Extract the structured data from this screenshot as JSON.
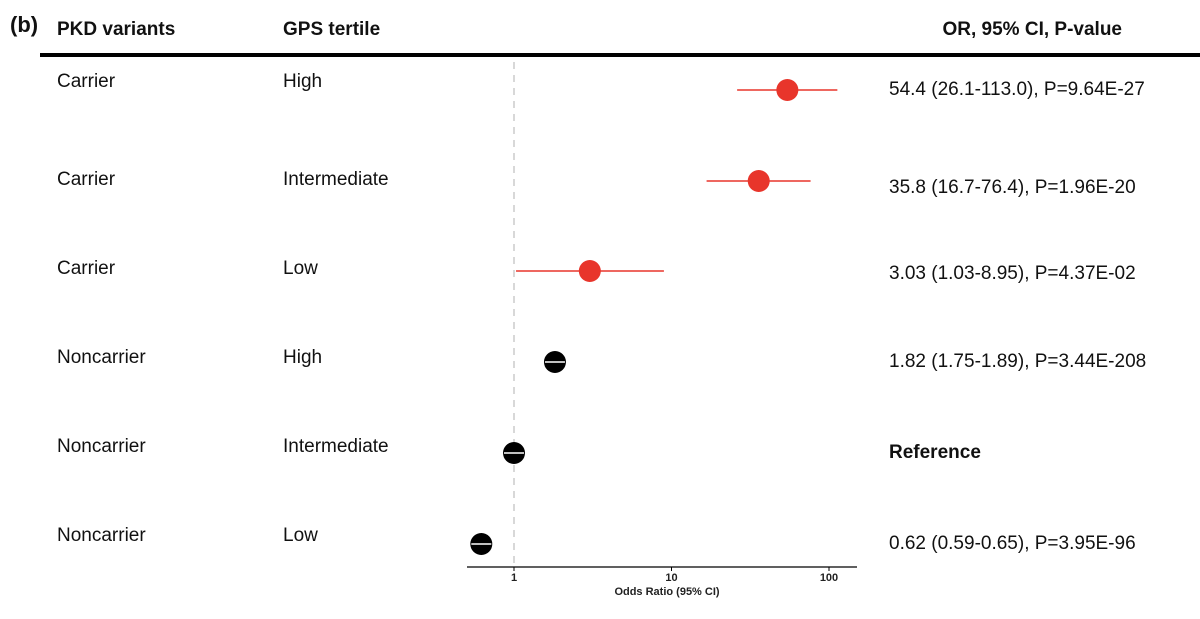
{
  "panel_label": "(b)",
  "headers": {
    "variant": "PKD variants",
    "tertile": "GPS tertile",
    "stats": "OR, 95% CI, P-value"
  },
  "rows": [
    {
      "variant": "Carrier",
      "tertile": "High",
      "stats": "54.4 (26.1-113.0), P=9.64E-27"
    },
    {
      "variant": "Carrier",
      "tertile": "Intermediate",
      "stats": "35.8 (16.7-76.4), P=1.96E-20"
    },
    {
      "variant": "Carrier",
      "tertile": "Low",
      "stats": "3.03 (1.03-8.95), P=4.37E-02"
    },
    {
      "variant": "Noncarrier",
      "tertile": "High",
      "stats": "1.82 (1.75-1.89), P=3.44E-208"
    },
    {
      "variant": "Noncarrier",
      "tertile": "Intermediate",
      "stats": "Reference"
    },
    {
      "variant": "Noncarrier",
      "tertile": "Low",
      "stats": "0.62 (0.59-0.65), P=3.95E-96"
    }
  ],
  "colors": {
    "carrier": "#e8352b",
    "noncarrier": "#000000",
    "reference_line": "#cccccc"
  },
  "chart_data": {
    "type": "scatter",
    "title": "",
    "xlabel": "Odds Ratio (95% CI)",
    "ylabel": "",
    "x_scale": "log10",
    "xlim": [
      0.55,
      170
    ],
    "x_ticks": [
      1,
      10,
      100
    ],
    "x_tick_labels": [
      "1",
      "10",
      "100"
    ],
    "reference_value": 1,
    "series": [
      {
        "name": "Carrier",
        "points": [
          {
            "label": "Carrier High",
            "or": 54.4,
            "lo": 26.1,
            "hi": 113.0
          },
          {
            "label": "Carrier Intermediate",
            "or": 35.8,
            "lo": 16.7,
            "hi": 76.4
          },
          {
            "label": "Carrier Low",
            "or": 3.03,
            "lo": 1.03,
            "hi": 8.95
          }
        ]
      },
      {
        "name": "Noncarrier",
        "points": [
          {
            "label": "Noncarrier High",
            "or": 1.82,
            "lo": 1.75,
            "hi": 1.89
          },
          {
            "label": "Noncarrier Intermediate",
            "or": 1.0,
            "lo": 1.0,
            "hi": 1.0
          },
          {
            "label": "Noncarrier Low",
            "or": 0.62,
            "lo": 0.59,
            "hi": 0.65
          }
        ]
      }
    ]
  }
}
